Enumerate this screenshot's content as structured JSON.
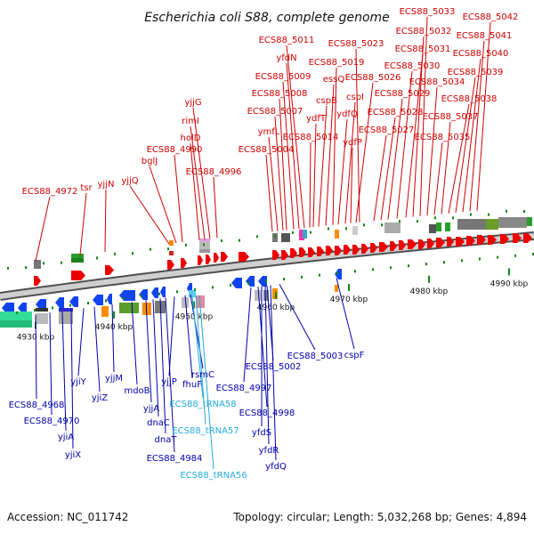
{
  "title": "Escherichia coli S88, complete genome",
  "footer": {
    "accession": "Accession: NC_011742",
    "stats": "Topology: circular; Length: 5,032,268 bp; Genes: 4,894"
  },
  "colors": {
    "forward_label": "#cc0000",
    "reverse_label": "#0000aa",
    "trna_label": "#22aadd",
    "forward_gene": "#ee0000",
    "reverse_gene": "#1144ee",
    "backbone": "#8a8a8a",
    "tick": "#118811"
  },
  "scale": {
    "ticks": [
      {
        "label": "4930 kbp"
      },
      {
        "label": "4940 kbp"
      },
      {
        "label": "4950 kbp"
      },
      {
        "label": "4960 kbp"
      },
      {
        "label": "4970 kbp"
      },
      {
        "label": "4980 kbp"
      },
      {
        "label": "4990 kbp"
      }
    ]
  },
  "forward_labels": [
    "ECS88_4972",
    "tsr",
    "yjjN",
    "yjjQ",
    "bglJ",
    "ECS88_4990",
    "holD",
    "rimI",
    "yjjG",
    "ECS88_4996",
    "ECS88_5004",
    "ymfL",
    "ECS88_5007",
    "ECS88_5008",
    "ECS88_5009",
    "yfdN",
    "ECS88_5011",
    "ECS88_5014",
    "ydfT",
    "cspB",
    "essQ",
    "ECS88_5019",
    "ydfQ",
    "cspI",
    "ydfP",
    "ECS88_5026",
    "ECS88_5023",
    "ECS88_5027",
    "ECS88_5028",
    "ECS88_5029",
    "ECS88_5030",
    "ECS88_5031",
    "ECS88_5032",
    "ECS88_5033",
    "ECS88_5034",
    "ECS88_5035",
    "ECS88_5037",
    "ECS88_5038",
    "ECS88_5039",
    "ECS88_5040",
    "ECS88_5041",
    "ECS88_5042"
  ],
  "reverse_labels": [
    "ECS88_4968",
    "ECS88_4970",
    "yjiA",
    "yjiX",
    "yjiZ",
    "yjiY",
    "yjjM",
    "mdoB",
    "yjjA",
    "dnaC",
    "dnaT",
    "ECS88_4984",
    "yjjP",
    "fhuF",
    "rsmC",
    "ECS88_4997",
    "ECS88_4998",
    "yfdS",
    "yfdR",
    "yfdQ",
    "ECS88_5002",
    "ECS88_5003",
    "cspF"
  ],
  "trna_labels": [
    "ECS88_tRNA58",
    "ECS88_tRNA57",
    "ECS88_tRNA56"
  ]
}
